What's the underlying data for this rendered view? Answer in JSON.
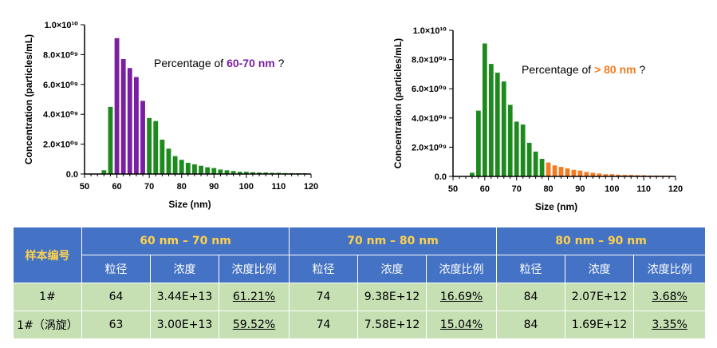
{
  "colors": {
    "green": "#1E8A1E",
    "purple": "#7B1FA2",
    "orange": "#F47B20",
    "table_header": "#4472C4",
    "table_header_text": "#FFD24A",
    "table_row": "#C6E0B4"
  },
  "chart_data": [
    {
      "type": "bar",
      "xlabel": "Size (nm)",
      "ylabel": "Concentration (particles/mL)",
      "xlim": [
        50,
        120
      ],
      "ylim": [
        0,
        10000000000.0
      ],
      "x_ticks": [
        "50",
        "60",
        "70",
        "80",
        "90",
        "100",
        "110",
        "120"
      ],
      "y_ticks": [
        "0.0",
        "2.0×10⁰⁹",
        "4.0×10⁰⁹",
        "6.0×10⁰⁹",
        "8.0×10⁰⁹",
        "1.0×10¹⁰"
      ],
      "grid": false,
      "annotation": {
        "prefix": "Percentage of ",
        "highlight": "60-70 nm",
        "suffix": " ?",
        "highlight_color": "#7B1FA2"
      },
      "highlight_range": [
        60,
        70
      ],
      "highlight_color": "#7B1FA2",
      "base_color": "#1E8A1E",
      "x": [
        56,
        58,
        60,
        62,
        64,
        66,
        68,
        70,
        72,
        74,
        76,
        78,
        80,
        82,
        84,
        86,
        88,
        90,
        92,
        94,
        96,
        98,
        100,
        102,
        104,
        106,
        108,
        110,
        112,
        114,
        116,
        118
      ],
      "values": [
        250000000.0,
        4500000000.0,
        9100000000.0,
        7700000000.0,
        7100000000.0,
        6500000000.0,
        4900000000.0,
        3750000000.0,
        3550000000.0,
        2300000000.0,
        1700000000.0,
        1200000000.0,
        950000000.0,
        750000000.0,
        650000000.0,
        550000000.0,
        450000000.0,
        400000000.0,
        300000000.0,
        250000000.0,
        200000000.0,
        150000000.0,
        150000000.0,
        120000000.0,
        100000000.0,
        100000000.0,
        80000000.0,
        80000000.0,
        60000000.0,
        60000000.0,
        50000000.0,
        50000000.0
      ]
    },
    {
      "type": "bar",
      "xlabel": "Size (nm)",
      "ylabel": "Concentration (particles/mL)",
      "xlim": [
        50,
        120
      ],
      "ylim": [
        0,
        10000000000.0
      ],
      "x_ticks": [
        "50",
        "60",
        "70",
        "80",
        "90",
        "100",
        "110",
        "120"
      ],
      "y_ticks": [
        "0.0",
        "2.0×10⁰⁹",
        "4.0×10⁰⁹",
        "6.0×10⁰⁹",
        "8.0×10⁰⁹",
        "1.0×10¹⁰"
      ],
      "grid": false,
      "annotation": {
        "prefix": "Percentage of ",
        "highlight": "> 80 nm",
        "suffix": " ?",
        "highlight_color": "#F47B20"
      },
      "highlight_range": [
        80,
        120
      ],
      "highlight_color": "#F47B20",
      "base_color": "#1E8A1E",
      "x": [
        56,
        58,
        60,
        62,
        64,
        66,
        68,
        70,
        72,
        74,
        76,
        78,
        80,
        82,
        84,
        86,
        88,
        90,
        92,
        94,
        96,
        98,
        100,
        102,
        104,
        106,
        108,
        110,
        112,
        114,
        116,
        118
      ],
      "values": [
        250000000.0,
        4500000000.0,
        9100000000.0,
        7700000000.0,
        7100000000.0,
        6500000000.0,
        4900000000.0,
        3750000000.0,
        3550000000.0,
        2300000000.0,
        1700000000.0,
        1200000000.0,
        950000000.0,
        750000000.0,
        650000000.0,
        550000000.0,
        450000000.0,
        400000000.0,
        300000000.0,
        250000000.0,
        200000000.0,
        150000000.0,
        150000000.0,
        120000000.0,
        100000000.0,
        100000000.0,
        80000000.0,
        80000000.0,
        60000000.0,
        60000000.0,
        50000000.0,
        50000000.0
      ]
    }
  ],
  "table": {
    "sample_header": "样本编号",
    "groups": [
      "60 nm – 70 nm",
      "70 nm – 80 nm",
      "80 nm – 90 nm"
    ],
    "sub_headers": [
      "粒径",
      "浓度",
      "浓度比例"
    ],
    "rows": [
      {
        "sample": "1#",
        "cells": [
          "64",
          "3.44E+13",
          "61.21%",
          "74",
          "9.38E+12",
          "16.69%",
          "84",
          "2.07E+12",
          "3.68%"
        ]
      },
      {
        "sample": "1#（涡旋）",
        "cells": [
          "63",
          "3.00E+13",
          "59.52%",
          "74",
          "7.58E+12",
          "15.04%",
          "84",
          "1.69E+12",
          "3.35%"
        ]
      }
    ]
  }
}
